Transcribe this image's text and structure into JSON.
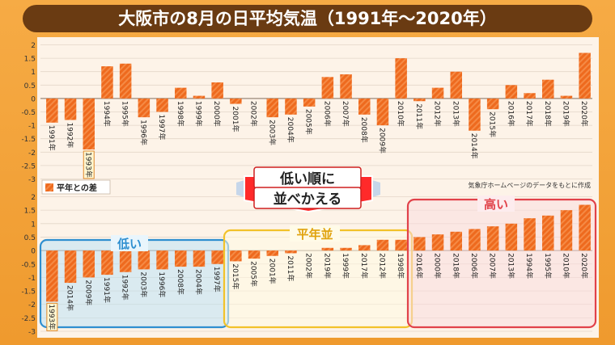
{
  "title": "大阪市の8月の日平均気温（1991年～2020年）",
  "legend_label": "平年との差",
  "source_note": "気象庁ホームページのデータをもとに作成",
  "callout": {
    "line1": "低い順に",
    "line2": "並べかえる"
  },
  "group_labels": {
    "low": "低い",
    "mid": "平年並",
    "high": "高い"
  },
  "colors": {
    "bar": "#ee6a1e",
    "low_box": "#2f8fd0",
    "mid_box": "#f2c22a",
    "high_box": "#e1424a",
    "callout_box": "#ff2a2a"
  },
  "chart_data": [
    {
      "type": "bar",
      "title": "",
      "xlabel": "",
      "ylabel": "",
      "ylim": [
        -3,
        2
      ],
      "yticks": [
        "2",
        "1.5",
        "1",
        "0.5",
        "0",
        "-0.5",
        "-1",
        "-1.5",
        "-2",
        "-2.5",
        "-3"
      ],
      "categories": [
        "1991年",
        "1992年",
        "1993年",
        "1994年",
        "1995年",
        "1996年",
        "1997年",
        "1998年",
        "1999年",
        "2000年",
        "2001年",
        "2002年",
        "2003年",
        "2004年",
        "2005年",
        "2006年",
        "2007年",
        "2008年",
        "2009年",
        "2010年",
        "2011年",
        "2012年",
        "2013年",
        "2014年",
        "2015年",
        "2016年",
        "2017年",
        "2018年",
        "2019年",
        "2020年"
      ],
      "values": [
        -0.9,
        -0.8,
        -1.9,
        1.2,
        1.3,
        -0.7,
        -0.5,
        0.4,
        0.1,
        0.6,
        -0.2,
        0.0,
        -0.7,
        -0.6,
        -0.3,
        0.8,
        0.9,
        -0.6,
        -1.0,
        1.5,
        -0.1,
        0.4,
        1.0,
        -1.2,
        -0.4,
        0.5,
        0.2,
        0.7,
        0.1,
        1.7
      ],
      "grid": true
    },
    {
      "type": "bar",
      "title": "",
      "xlabel": "",
      "ylabel": "",
      "ylim": [
        -3,
        2
      ],
      "yticks": [
        "2",
        "1.5",
        "1",
        "0.5",
        "0",
        "-0.5",
        "-1",
        "-1.5",
        "-2",
        "-2.5",
        "-3"
      ],
      "categories": [
        "1993年",
        "2014年",
        "2009年",
        "1991年",
        "1992年",
        "2003年",
        "1996年",
        "2008年",
        "2004年",
        "1997年",
        "2015年",
        "2005年",
        "2001年",
        "2011年",
        "2002年",
        "2019年",
        "1999年",
        "2017年",
        "2012年",
        "1998年",
        "2016年",
        "2000年",
        "2018年",
        "2006年",
        "2007年",
        "2013年",
        "1994年",
        "1995年",
        "2010年",
        "2020年"
      ],
      "values": [
        -1.9,
        -1.2,
        -1.0,
        -0.9,
        -0.8,
        -0.7,
        -0.7,
        -0.6,
        -0.6,
        -0.5,
        -0.4,
        -0.3,
        -0.2,
        -0.1,
        0.0,
        0.1,
        0.1,
        0.2,
        0.4,
        0.4,
        0.5,
        0.6,
        0.7,
        0.8,
        0.9,
        1.0,
        1.2,
        1.3,
        1.5,
        1.7
      ],
      "grid": true
    }
  ]
}
